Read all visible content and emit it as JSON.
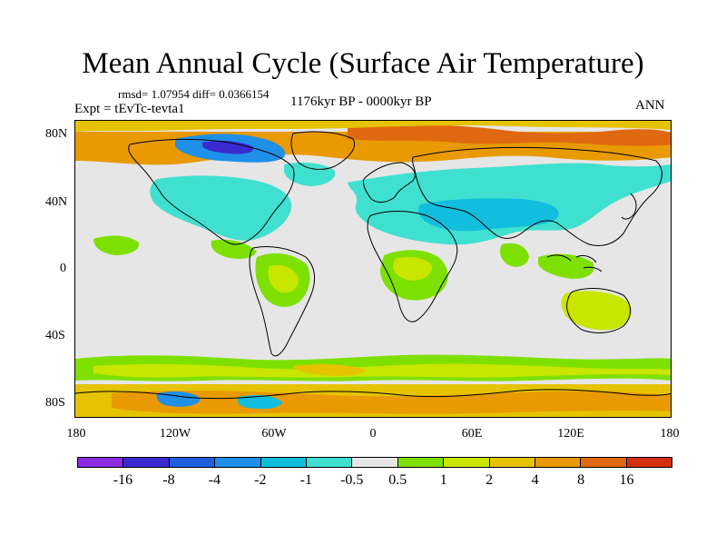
{
  "title": "Mean Annual Cycle (Surface Air Temperature)",
  "stats": "rmsd= 1.07954 diff= 0.0366154",
  "experiment": "Expt = tEvTc-tevta1",
  "period": "1176kyr BP - 0000kyr BP",
  "season": "ANN",
  "y_axis_labels": [
    "80N",
    "40N",
    "0",
    "40S",
    "80S"
  ],
  "x_axis_labels": [
    "180",
    "120W",
    "60W",
    "0",
    "60E",
    "120E",
    "180"
  ],
  "colorbar": {
    "labels": [
      "-16",
      "-8",
      "-4",
      "-2",
      "-1",
      "-0.5",
      "0.5",
      "1",
      "2",
      "4",
      "8",
      "16"
    ],
    "colors": [
      "#8a2be2",
      "#3a2bd0",
      "#1e5fe0",
      "#1e90e8",
      "#11bede",
      "#40e0d0",
      "#e6e6e6",
      "#7ee000",
      "#c8e600",
      "#e6c300",
      "#e89a00",
      "#e06810",
      "#d43010"
    ]
  },
  "map_colors": {
    "ocean": "#e6e6e6",
    "cyan": "#40e0d0",
    "lightblue": "#11bede",
    "blue": "#1e90e8",
    "darkblue": "#3a2bd0",
    "green": "#7ee000",
    "yellowgreen": "#c8e600",
    "gold": "#e6c300",
    "orange": "#e89a00",
    "darkorange": "#e06810",
    "coast": "#000000"
  }
}
